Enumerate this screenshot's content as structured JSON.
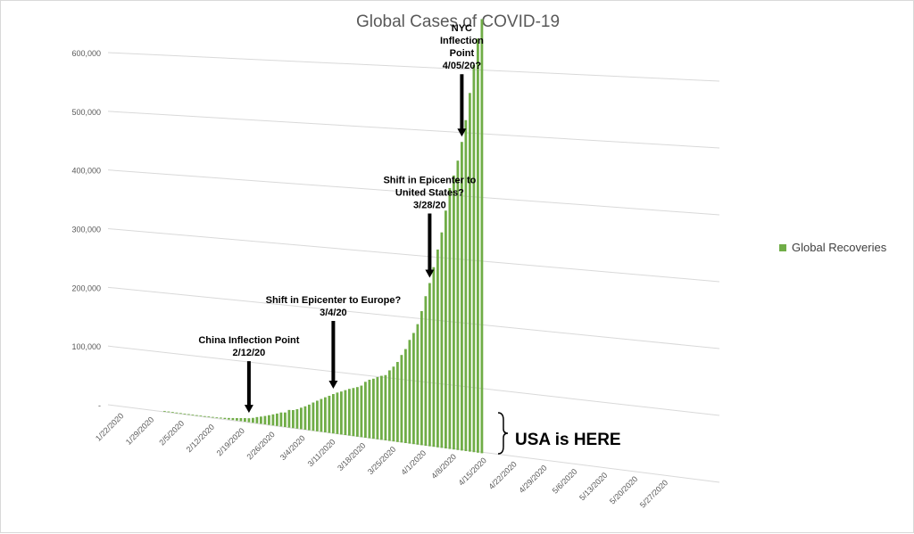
{
  "chart_data": {
    "type": "bar",
    "title": "Global Cases of COVID-19",
    "xlabel": "",
    "ylabel": "",
    "ylim": [
      0,
      600000
    ],
    "y_ticks": [
      "-",
      "100,000",
      "200,000",
      "300,000",
      "400,000",
      "500,000",
      "600,000"
    ],
    "x_ticks": [
      "1/22/2020",
      "1/29/2020",
      "2/5/2020",
      "2/12/2020",
      "2/19/2020",
      "2/26/2020",
      "3/4/2020",
      "3/11/2020",
      "3/18/2020",
      "3/25/2020",
      "4/1/2020",
      "4/8/2020",
      "4/15/2020",
      "4/22/2020",
      "4/29/2020",
      "5/6/2020",
      "5/13/2020",
      "5/20/2020",
      "5/27/2020"
    ],
    "x_start": "2020-01-22",
    "series": [
      {
        "name": "Global Recoveries",
        "color": "#70ad47",
        "start": "2020-01-22",
        "values": [
          28,
          30,
          36,
          39,
          52,
          61,
          107,
          126,
          143,
          222,
          284,
          472,
          623,
          852,
          1124,
          1487,
          2011,
          2616,
          3244,
          3946,
          4683,
          5150,
          6295,
          8058,
          9395,
          10865,
          12583,
          14352,
          16121,
          18177,
          18890,
          22886,
          23394,
          25227,
          27905,
          30384,
          33277,
          36711,
          39782,
          42716,
          45602,
          48228,
          51170,
          53796,
          55865,
          58358,
          60695,
          62494,
          64404,
          67003,
          72624,
          76034,
          78088,
          80840,
          83207,
          84854,
          91676,
          97243,
          103999,
          113768,
          122150,
          134732,
          144452,
          156594,
          174262,
          194312,
          212064,
          233386,
          257047,
          280000,
          309000,
          339000,
          356000,
          376000,
          401000,
          430000,
          466000,
          503000,
          538000,
          564000
        ]
      }
    ],
    "legend": {
      "position": "right",
      "label": "Global Recoveries"
    },
    "gridlines": true,
    "annotations": [
      {
        "lines": [
          "China Inflection Point",
          "2/12/20"
        ],
        "date": "2020-02-12"
      },
      {
        "lines": [
          "Shift in Epicenter to Europe?",
          "3/4/20"
        ],
        "date": "2020-03-04"
      },
      {
        "lines": [
          "Shift in Epicenter to",
          "United States?",
          "3/28/20"
        ],
        "date": "2020-03-28"
      },
      {
        "lines": [
          "NYC",
          "Inflection",
          "Point",
          "4/05/20?"
        ],
        "date": "2020-04-05"
      }
    ],
    "callout": "USA is HERE"
  }
}
